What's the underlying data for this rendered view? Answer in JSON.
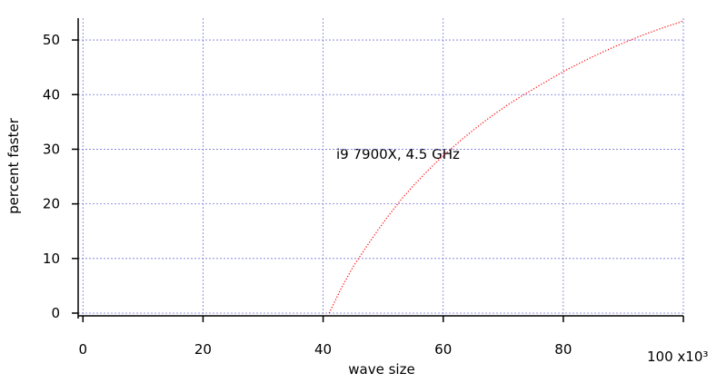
{
  "chart_data": {
    "type": "line",
    "x_label": "wave size",
    "y_label": "percent faster",
    "annotation": "i9 7900X, 4.5 GHz",
    "x": [
      41,
      43,
      45,
      47,
      49,
      51,
      53,
      55,
      57,
      59,
      61,
      63,
      65,
      67,
      69,
      71,
      73,
      75,
      77,
      79,
      81,
      83,
      85,
      87,
      89,
      91,
      93,
      95,
      97,
      99,
      100
    ],
    "series": [
      {
        "color": "#ff0000",
        "values": [
          0,
          4.5,
          8.5,
          11.8,
          15,
          18,
          20.8,
          23.3,
          25.6,
          27.8,
          29.8,
          31.7,
          33.5,
          35.2,
          36.8,
          38.3,
          39.7,
          41,
          42.3,
          43.6,
          44.8,
          45.9,
          47,
          48,
          49,
          49.9,
          50.8,
          51.6,
          52.4,
          53.1,
          53.5
        ]
      }
    ],
    "xlim": [
      -0.8,
      100
    ],
    "ylim": [
      -0.5,
      54
    ],
    "xticks": [
      0,
      20,
      40,
      60,
      80,
      {
        "value": 100,
        "label": "100 x10³"
      }
    ],
    "yticks": [
      0,
      10,
      20,
      30,
      40,
      50
    ],
    "grid": true,
    "grid_color": "#7777dd"
  }
}
